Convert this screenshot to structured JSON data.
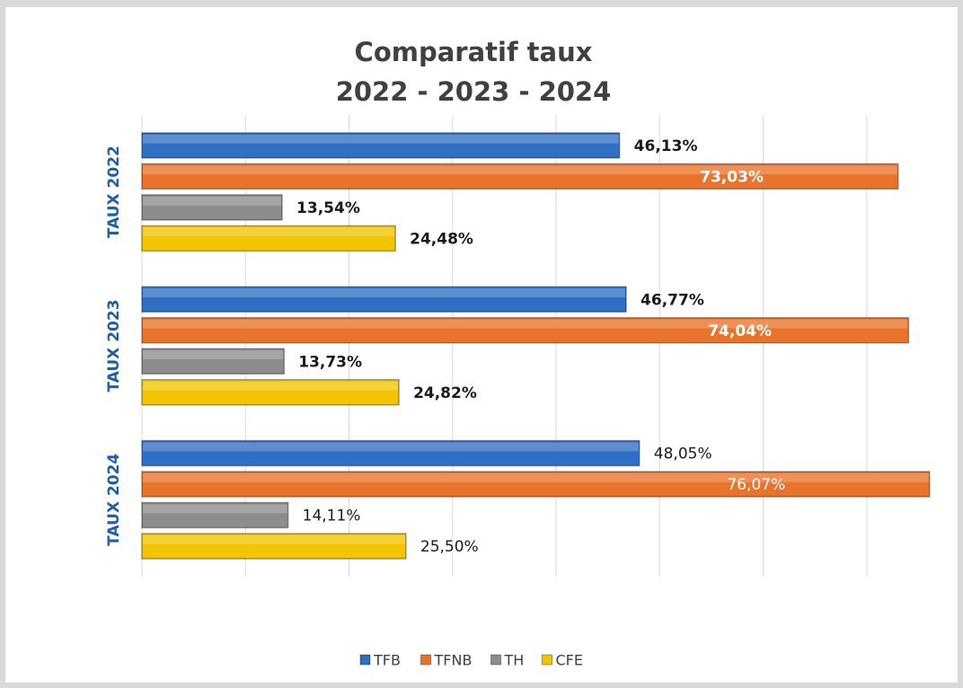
{
  "chart_data": {
    "type": "bar",
    "orientation": "horizontal",
    "title": "Comparatif taux",
    "subtitle": "2022 - 2023 - 2024",
    "categories": [
      "TAUX 2022",
      "TAUX 2023",
      "TAUX 2024"
    ],
    "series": [
      {
        "name": "TFB",
        "color": "#2f6fc6",
        "values": [
          46.13,
          46.77,
          48.05
        ],
        "value_labels": [
          "46,13%",
          "46,77%",
          "48,05%"
        ]
      },
      {
        "name": "TFNB",
        "color": "#e8732a",
        "values": [
          73.03,
          74.04,
          76.07
        ],
        "value_labels": [
          "73,03%",
          "74,04%",
          "76,07%"
        ]
      },
      {
        "name": "TH",
        "color": "#8c8c8c",
        "values": [
          13.54,
          13.73,
          14.11
        ],
        "value_labels": [
          "13,54%",
          "13,73%",
          "14,11%"
        ]
      },
      {
        "name": "CFE",
        "color": "#f2c500",
        "values": [
          24.48,
          24.82,
          25.5
        ],
        "value_labels": [
          "24,48%",
          "24,82%",
          "25,50%"
        ]
      }
    ],
    "xlim": [
      0,
      78
    ],
    "xticks": [
      0,
      10,
      20,
      30,
      40,
      50,
      60,
      70
    ],
    "grid": true,
    "legend": "bottom"
  }
}
